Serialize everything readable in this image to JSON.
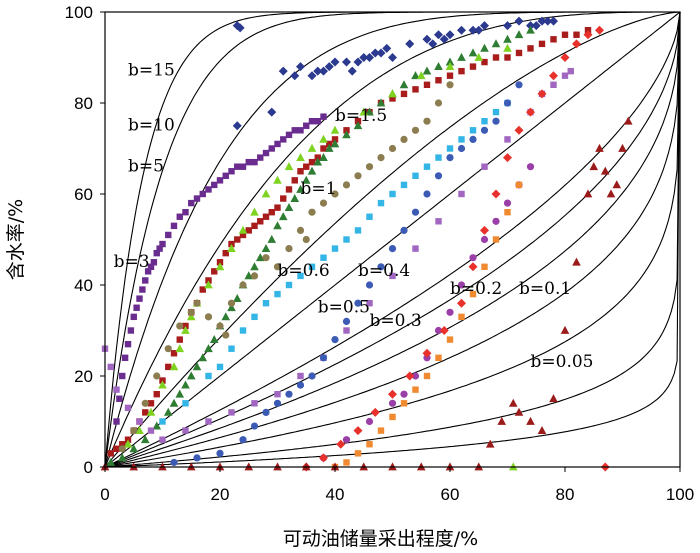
{
  "chart_data": {
    "type": "scatter",
    "title": "",
    "xlabel": "可动油储量采出程度/%",
    "ylabel": "含水率/%",
    "xlim": [
      0,
      100
    ],
    "ylim": [
      0,
      100
    ],
    "xticks": [
      "0",
      "20",
      "40",
      "60",
      "80",
      "100"
    ],
    "yticks": [
      "0",
      "20",
      "40",
      "60",
      "80",
      "100"
    ],
    "grid": false,
    "legend": "none",
    "curve_labels": [
      {
        "name": "b=15",
        "b": 15,
        "x": 4,
        "y": 86
      },
      {
        "name": "b=10",
        "b": 10,
        "x": 4,
        "y": 74
      },
      {
        "name": "b=5",
        "b": 5,
        "x": 4,
        "y": 65
      },
      {
        "name": "b=3",
        "b": 3,
        "x": 1.5,
        "y": 44
      },
      {
        "name": "b=1.5",
        "b": 1.5,
        "x": 40,
        "y": 76
      },
      {
        "name": "b=1",
        "b": 1,
        "x": 34,
        "y": 60
      },
      {
        "name": "b=0.6",
        "b": 0.6,
        "x": 30,
        "y": 42
      },
      {
        "name": "b=0.4",
        "b": 0.4,
        "x": 44,
        "y": 42
      },
      {
        "name": "b=0.5",
        "b": 0.5,
        "x": 37,
        "y": 34
      },
      {
        "name": "b=0.3",
        "b": 0.3,
        "x": 46,
        "y": 31
      },
      {
        "name": "b=0.2",
        "b": 0.2,
        "x": 60,
        "y": 38
      },
      {
        "name": "b=0.1",
        "b": 0.1,
        "x": 72,
        "y": 38
      },
      {
        "name": "b=0.05",
        "b": 0.05,
        "x": 74,
        "y": 22
      }
    ],
    "series": [
      {
        "name": "navy diamonds",
        "marker": "diamond",
        "color": "#2b3a8f",
        "x": [
          23,
          23.5,
          23,
          29,
          31,
          33,
          34,
          36,
          37,
          38,
          39,
          40,
          42,
          43,
          44,
          45,
          46,
          47,
          48,
          49,
          50,
          53,
          56,
          57,
          58,
          59,
          60,
          62,
          64,
          65,
          66,
          70,
          72,
          74,
          75,
          76,
          77,
          78
        ],
        "y": [
          97,
          96.5,
          75,
          78,
          87,
          86,
          88,
          86,
          87,
          87,
          88,
          89,
          89,
          87,
          89,
          90,
          90,
          91,
          91,
          92,
          90,
          93,
          94,
          93,
          95,
          94,
          95,
          96,
          96,
          96,
          97,
          97,
          98,
          97,
          97,
          98,
          98,
          98
        ]
      },
      {
        "name": "purple squares",
        "marker": "square",
        "color": "#6a2c8e",
        "x": [
          2,
          2.5,
          3,
          3.5,
          4,
          4.5,
          5,
          5.5,
          6,
          6.5,
          7,
          7.5,
          8,
          8.5,
          9,
          9.5,
          10,
          11,
          12,
          13,
          14,
          15,
          16,
          17,
          18,
          19,
          20,
          21,
          22,
          23,
          24,
          25,
          26,
          27,
          28,
          29,
          30,
          31,
          32,
          33,
          34,
          35,
          36,
          37,
          38
        ],
        "y": [
          10,
          15,
          20,
          24,
          27,
          30,
          33,
          35,
          37,
          39,
          41,
          43,
          44,
          45,
          47,
          48,
          49,
          51,
          53,
          55,
          56,
          58,
          59,
          60,
          61,
          62,
          63,
          64,
          65,
          66,
          66,
          67,
          67,
          68,
          69,
          70,
          71,
          72,
          73,
          74,
          74,
          75,
          76,
          76,
          77
        ]
      },
      {
        "name": "dark red squares",
        "marker": "square",
        "color": "#a81c1c",
        "x": [
          1,
          2,
          3,
          4,
          5,
          6,
          7,
          8,
          9,
          10,
          11,
          12,
          13,
          14,
          15,
          16,
          17,
          18,
          19,
          20,
          21,
          22,
          23,
          24,
          25,
          26,
          27,
          28,
          29,
          30,
          31,
          32,
          33,
          34,
          35,
          36,
          37,
          38,
          39,
          40,
          42,
          44,
          46,
          48,
          50,
          52,
          54,
          56,
          58,
          60,
          62,
          64,
          66,
          68,
          70,
          72,
          74,
          76,
          78,
          80,
          82,
          84
        ],
        "y": [
          3,
          4,
          5,
          6,
          8,
          10,
          12,
          14,
          16,
          19,
          22,
          25,
          28,
          31,
          34,
          36,
          39,
          41,
          43,
          45,
          47,
          49,
          50,
          51,
          52,
          53,
          54,
          55,
          56,
          57,
          59,
          61,
          63,
          65,
          66,
          67,
          68,
          70,
          71,
          72,
          74,
          76,
          78,
          80,
          81,
          82,
          83,
          84,
          85,
          86,
          87,
          88,
          89,
          90,
          90,
          91,
          92,
          93,
          94,
          95,
          95,
          96
        ]
      },
      {
        "name": "green triangles",
        "marker": "triangle",
        "color": "#2e7d32",
        "x": [
          1,
          3,
          5,
          7,
          9,
          11,
          12,
          13,
          14,
          15,
          16,
          17,
          18,
          19,
          20,
          21,
          22,
          23,
          24,
          25,
          26,
          27,
          28,
          29,
          30,
          31,
          32,
          33,
          34,
          35,
          36,
          37,
          38,
          39,
          40,
          42,
          44,
          46,
          48,
          50,
          52,
          54,
          56,
          58,
          60,
          62,
          64,
          66,
          68,
          70,
          72,
          74
        ],
        "y": [
          1,
          2,
          4,
          6,
          9,
          12,
          14,
          16,
          18,
          20,
          22,
          24,
          26,
          28,
          31,
          33,
          35,
          37,
          40,
          42,
          44,
          46,
          48,
          50,
          53,
          55,
          57,
          59,
          61,
          63,
          65,
          67,
          68,
          70,
          71,
          73,
          75,
          78,
          80,
          82,
          84,
          86,
          87,
          88,
          89,
          90,
          91,
          92,
          93,
          94,
          95,
          96
        ]
      },
      {
        "name": "light green triangles",
        "marker": "triangle",
        "color": "#7ed321",
        "x": [
          4,
          6,
          8,
          10,
          12,
          13,
          14,
          15,
          16,
          18,
          20,
          22,
          24,
          26,
          28,
          30,
          32,
          34,
          36,
          38,
          40,
          45,
          50,
          55,
          60,
          65,
          70,
          71
        ],
        "y": [
          5,
          8,
          12,
          18,
          22,
          26,
          30,
          33,
          36,
          40,
          44,
          48,
          52,
          56,
          60,
          63,
          66,
          68,
          70,
          72,
          74,
          78,
          82,
          86,
          88,
          90,
          92,
          0
        ]
      },
      {
        "name": "olive circles",
        "marker": "circle",
        "color": "#8b7d4f",
        "x": [
          3,
          5,
          7,
          9,
          11,
          13,
          15,
          16,
          18,
          20,
          21,
          22,
          24,
          26,
          28,
          30,
          32,
          34,
          35,
          36,
          38,
          40,
          42,
          44,
          46,
          48,
          50,
          52,
          54,
          56,
          58,
          60
        ],
        "y": [
          4,
          8,
          14,
          20,
          26,
          31,
          34,
          36,
          33,
          31,
          29,
          36,
          40,
          42,
          46,
          44,
          48,
          52,
          50,
          56,
          58,
          60,
          62,
          64,
          66,
          68,
          70,
          72,
          74,
          76,
          80,
          84
        ]
      },
      {
        "name": "sky blue squares",
        "marker": "square",
        "color": "#33b5e5",
        "x": [
          10,
          14,
          18,
          20,
          22,
          24,
          26,
          28,
          30,
          32,
          34,
          36,
          38,
          40,
          42,
          44,
          46,
          48,
          50,
          52,
          54,
          56,
          58,
          60,
          62,
          64,
          66,
          68,
          70
        ],
        "y": [
          10,
          14,
          20,
          22,
          26,
          30,
          33,
          36,
          38,
          40,
          42,
          44,
          46,
          48,
          50,
          52,
          55,
          58,
          60,
          62,
          64,
          66,
          68,
          70,
          72,
          74,
          76,
          78,
          80
        ]
      },
      {
        "name": "violet squares",
        "marker": "square",
        "color": "#a066c0",
        "x": [
          0,
          1,
          2,
          4,
          6,
          8,
          10,
          14,
          18,
          22,
          26,
          30,
          34,
          38,
          42,
          46,
          50,
          54,
          58,
          62,
          66,
          70,
          74,
          76,
          78,
          80,
          81
        ],
        "y": [
          26,
          22,
          17,
          13,
          10,
          8,
          6,
          8,
          10,
          12,
          14,
          16,
          20,
          24,
          30,
          36,
          42,
          48,
          54,
          60,
          66,
          72,
          78,
          82,
          84,
          86,
          87
        ]
      },
      {
        "name": "blue circles",
        "marker": "circle",
        "color": "#3b5bb5",
        "x": [
          12,
          16,
          20,
          24,
          26,
          28,
          30,
          32,
          34,
          36,
          38,
          40,
          42,
          44,
          46,
          48,
          50,
          52,
          54,
          56,
          58,
          60,
          62,
          64,
          66,
          68,
          70,
          72
        ],
        "y": [
          1,
          2,
          3,
          6,
          9,
          12,
          14,
          16,
          18,
          20,
          24,
          28,
          32,
          36,
          40,
          44,
          48,
          52,
          56,
          60,
          64,
          68,
          70,
          72,
          74,
          76,
          80,
          84
        ]
      },
      {
        "name": "magenta circles",
        "marker": "circle",
        "color": "#9b3fa8",
        "x": [
          38,
          42,
          46,
          50,
          52,
          54,
          56,
          58,
          60,
          62,
          64,
          66,
          68,
          70,
          72,
          74
        ],
        "y": [
          2,
          6,
          10,
          14,
          16,
          20,
          24,
          30,
          34,
          40,
          46,
          50,
          54,
          58,
          62,
          66
        ]
      },
      {
        "name": "orange squares",
        "marker": "square",
        "color": "#f08a30",
        "x": [
          40,
          42,
          44,
          46,
          48,
          50,
          52,
          54,
          56,
          58,
          60,
          62,
          64,
          66,
          68,
          70,
          72
        ],
        "y": [
          0,
          1,
          3,
          5,
          8,
          11,
          14,
          17,
          20,
          24,
          28,
          33,
          38,
          44,
          50,
          56,
          62
        ]
      },
      {
        "name": "red diamonds",
        "marker": "diamond",
        "color": "#e8312b",
        "x": [
          35,
          38,
          41,
          44,
          47,
          50,
          53,
          56,
          59,
          62,
          64,
          66,
          68,
          70,
          72,
          74,
          76,
          78,
          80,
          82,
          84,
          86,
          87
        ],
        "y": [
          0,
          2,
          5,
          8,
          12,
          16,
          20,
          25,
          30,
          36,
          44,
          52,
          60,
          68,
          74,
          78,
          82,
          86,
          90,
          93,
          95,
          96,
          0
        ]
      },
      {
        "name": "dark red triangles",
        "marker": "triangle",
        "color": "#9b1b1b",
        "x": [
          0,
          5,
          10,
          15,
          20,
          25,
          30,
          35,
          40,
          45,
          50,
          55,
          60,
          65,
          67,
          69,
          71,
          72,
          74,
          76,
          78,
          80,
          82,
          84,
          85,
          86,
          87,
          88,
          89,
          90,
          91
        ],
        "y": [
          0,
          0,
          0,
          0,
          0,
          0,
          0,
          0,
          0,
          0,
          0,
          0,
          0,
          0,
          5,
          10,
          14,
          12,
          10,
          8,
          15,
          30,
          45,
          60,
          66,
          70,
          65,
          60,
          62,
          70,
          76
        ]
      }
    ]
  }
}
